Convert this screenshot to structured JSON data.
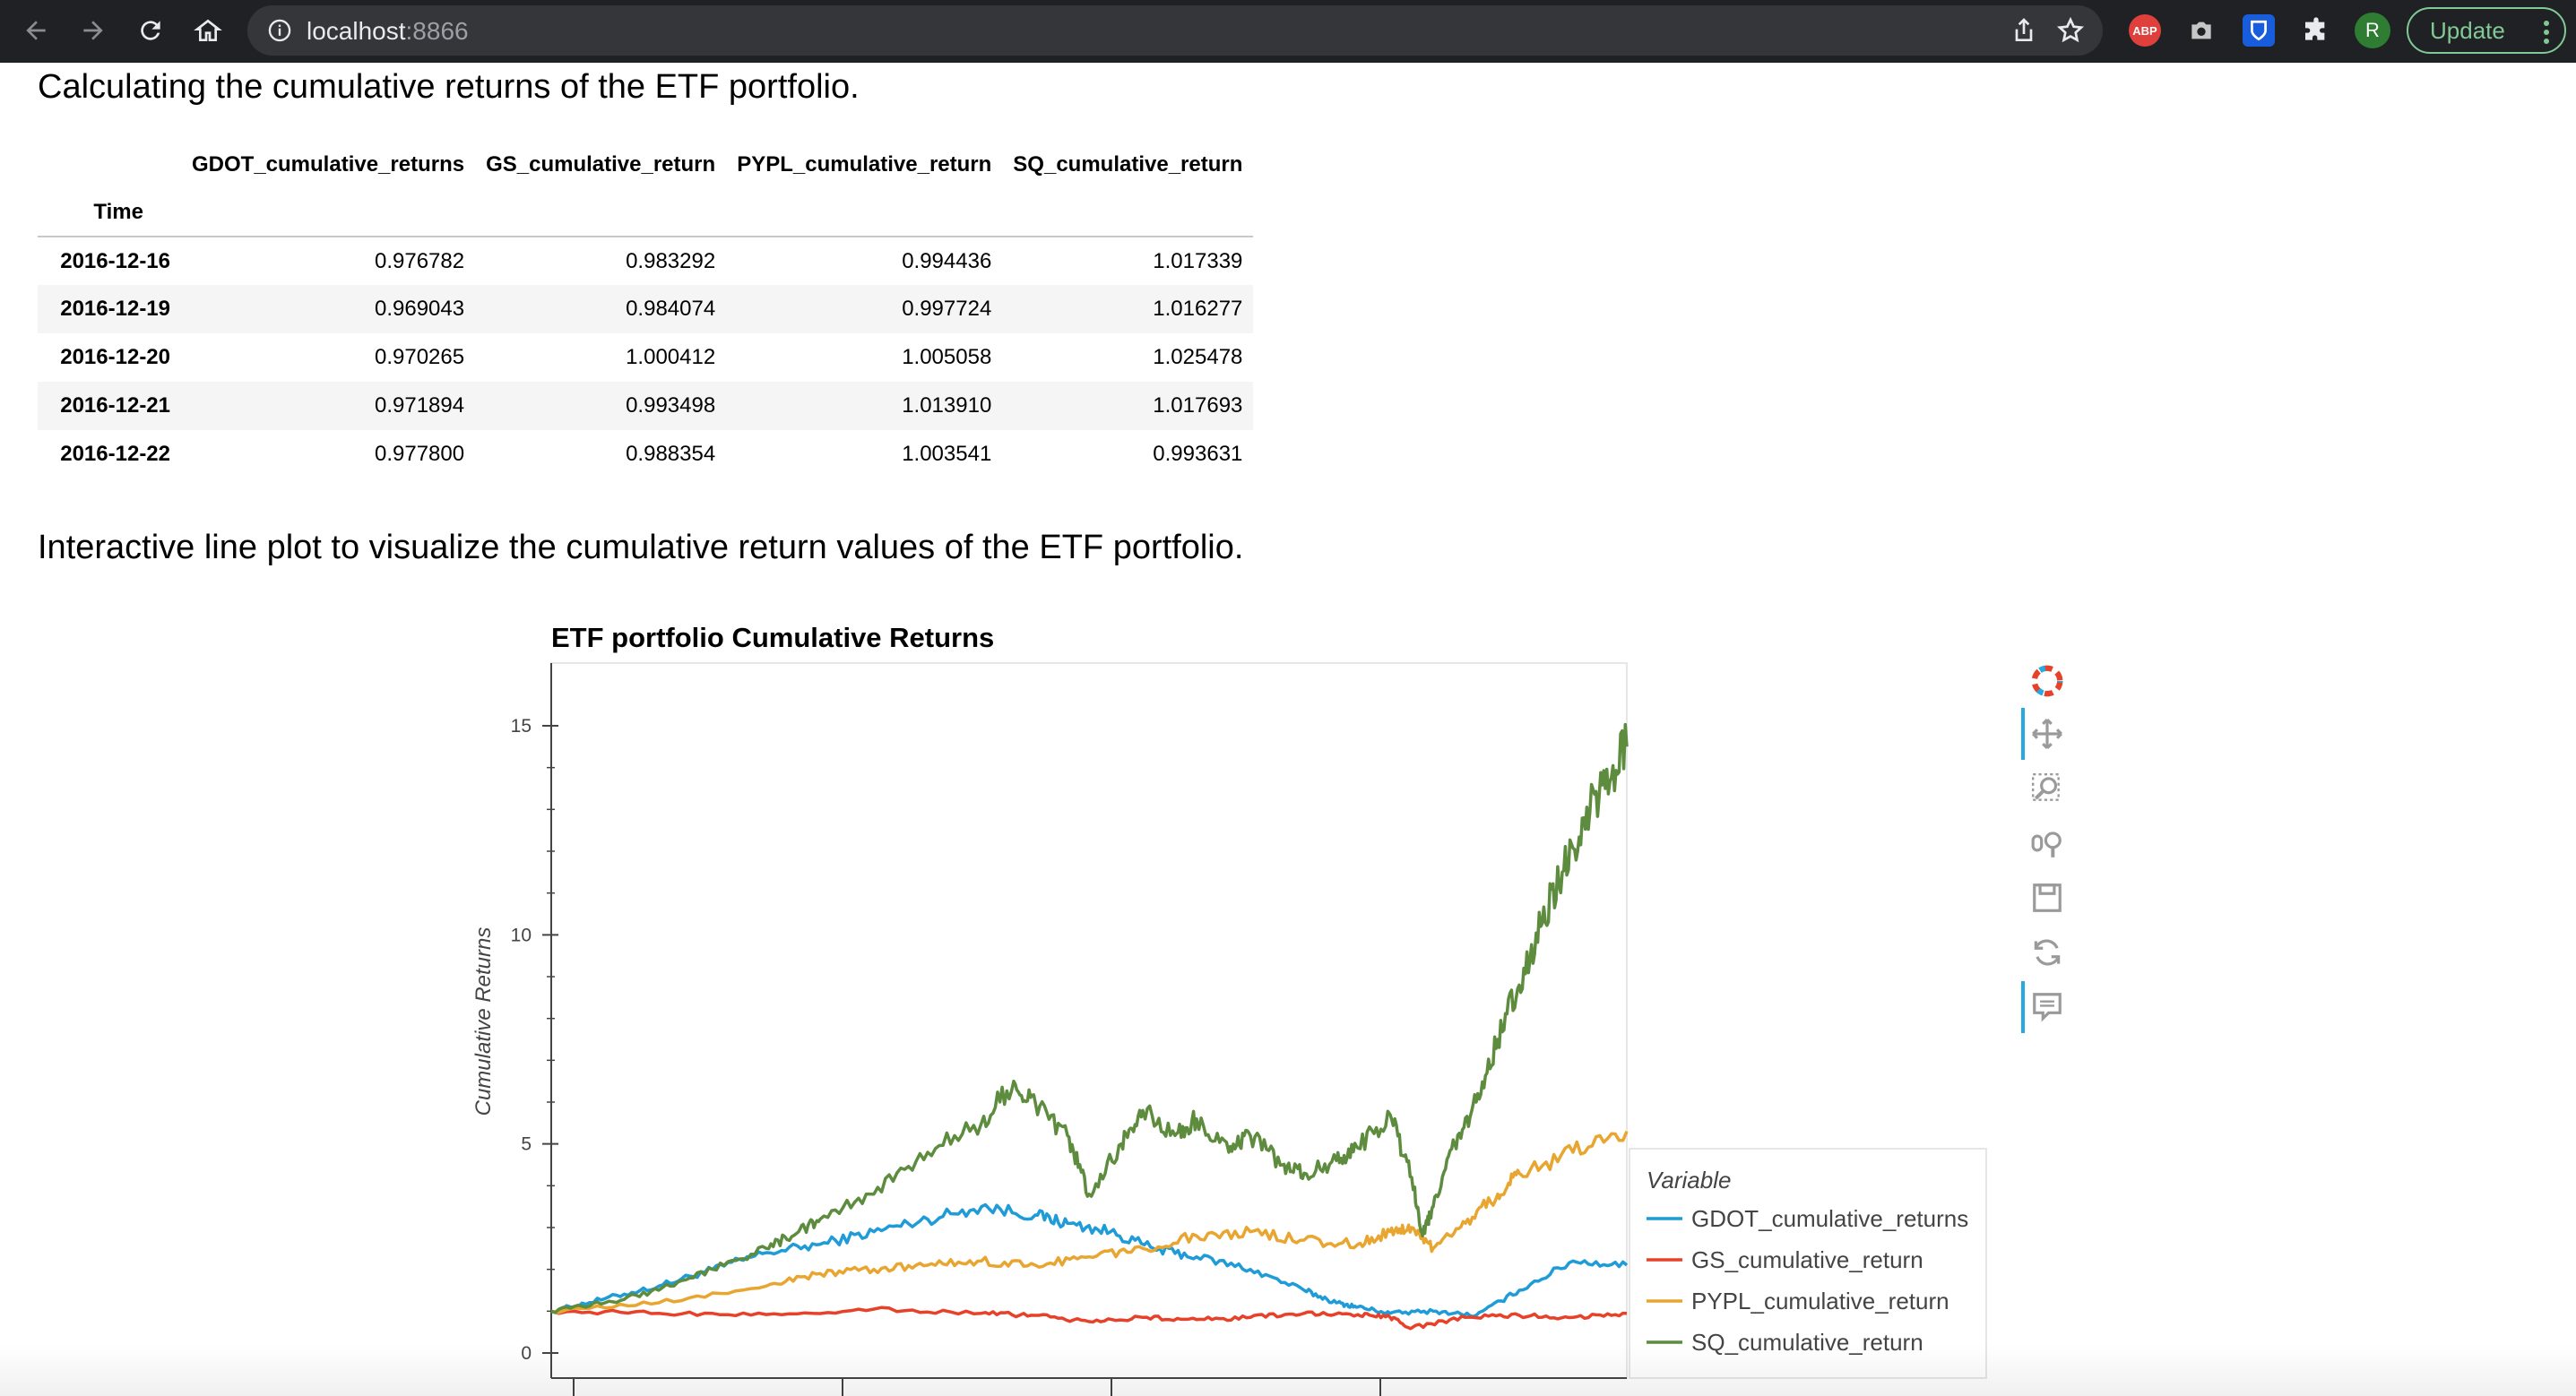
{
  "browser": {
    "url_host": "localhost",
    "url_port": ":8866",
    "update_label": "Update",
    "profile_initial": "R",
    "abp_label": "ABP"
  },
  "notebook": {
    "heading_table": "Calculating the cumulative returns of the ETF portfolio.",
    "heading_plot": "Interactive line plot to visualize the cumulative return values of the ETF portfolio."
  },
  "table": {
    "columns": [
      "GDOT_cumulative_returns",
      "GS_cumulative_return",
      "PYPL_cumulative_return",
      "SQ_cumulative_return"
    ],
    "index_name": "Time",
    "rows": [
      {
        "time": "2016-12-16",
        "values": [
          "0.976782",
          "0.983292",
          "0.994436",
          "1.017339"
        ]
      },
      {
        "time": "2016-12-19",
        "values": [
          "0.969043",
          "0.984074",
          "0.997724",
          "1.016277"
        ]
      },
      {
        "time": "2016-12-20",
        "values": [
          "0.970265",
          "1.000412",
          "1.005058",
          "1.025478"
        ]
      },
      {
        "time": "2016-12-21",
        "values": [
          "0.971894",
          "0.993498",
          "1.013910",
          "1.017693"
        ]
      },
      {
        "time": "2016-12-22",
        "values": [
          "0.977800",
          "0.988354",
          "1.003541",
          "0.993631"
        ]
      }
    ]
  },
  "chart_data": {
    "type": "line",
    "title": "ETF portfolio Cumulative Returns",
    "xlabel": "",
    "ylabel": "Cumulative Returns",
    "ylim": [
      -0.6,
      16.5
    ],
    "yticks": [
      0,
      5,
      10,
      15
    ],
    "xlim": [
      0,
      100
    ],
    "grid": false,
    "legend_title": "Variable",
    "legend_placement": "right",
    "series": [
      {
        "name": "GDOT_cumulative_returns",
        "color": "#1f9bd7",
        "x": [
          0,
          5,
          10,
          15,
          20,
          25,
          30,
          35,
          40,
          45,
          48,
          52,
          56,
          60,
          65,
          70,
          73,
          75,
          78,
          82,
          86,
          90,
          95,
          100
        ],
        "y": [
          1,
          1.3,
          1.6,
          2.0,
          2.4,
          2.6,
          2.9,
          3.2,
          3.5,
          3.3,
          3.1,
          2.9,
          2.5,
          2.3,
          2.0,
          1.5,
          1.2,
          1.1,
          0.95,
          1.0,
          0.9,
          1.5,
          2.2,
          2.1
        ]
      },
      {
        "name": "GS_cumulative_return",
        "color": "#e8412a",
        "x": [
          0,
          10,
          20,
          30,
          40,
          45,
          50,
          55,
          60,
          65,
          70,
          75,
          78,
          80,
          85,
          90,
          95,
          100
        ],
        "y": [
          1,
          0.95,
          0.92,
          1.05,
          0.95,
          0.9,
          0.75,
          0.85,
          0.8,
          0.85,
          0.95,
          0.92,
          0.85,
          0.6,
          0.85,
          0.9,
          0.85,
          0.95
        ]
      },
      {
        "name": "PYPL_cumulative_return",
        "color": "#e8a530",
        "x": [
          0,
          10,
          20,
          25,
          30,
          35,
          40,
          45,
          50,
          55,
          60,
          65,
          70,
          75,
          78,
          80,
          82,
          85,
          88,
          90,
          95,
          100
        ],
        "y": [
          1,
          1.2,
          1.6,
          1.9,
          2.0,
          2.1,
          2.2,
          2.1,
          2.3,
          2.5,
          2.8,
          2.9,
          2.7,
          2.6,
          2.9,
          3.0,
          2.5,
          3.1,
          3.8,
          4.3,
          4.8,
          5.3
        ]
      },
      {
        "name": "SQ_cumulative_return",
        "color": "#5d8c3e",
        "x": [
          0,
          5,
          10,
          15,
          20,
          23,
          25,
          30,
          35,
          40,
          43,
          45,
          48,
          50,
          53,
          55,
          58,
          60,
          63,
          65,
          68,
          70,
          73,
          75,
          78,
          80,
          81,
          82,
          84,
          86,
          88,
          90,
          92,
          94,
          96,
          98,
          100
        ],
        "y": [
          1,
          1.2,
          1.5,
          2.0,
          2.5,
          2.9,
          3.2,
          3.8,
          4.8,
          5.5,
          6.5,
          6.0,
          5.2,
          3.8,
          5.0,
          5.8,
          5.2,
          5.6,
          4.8,
          5.2,
          4.5,
          4.3,
          4.6,
          4.9,
          5.7,
          4.2,
          2.8,
          3.5,
          5.0,
          6.0,
          7.5,
          8.8,
          10.2,
          11.5,
          12.8,
          13.5,
          14.5
        ]
      }
    ]
  }
}
